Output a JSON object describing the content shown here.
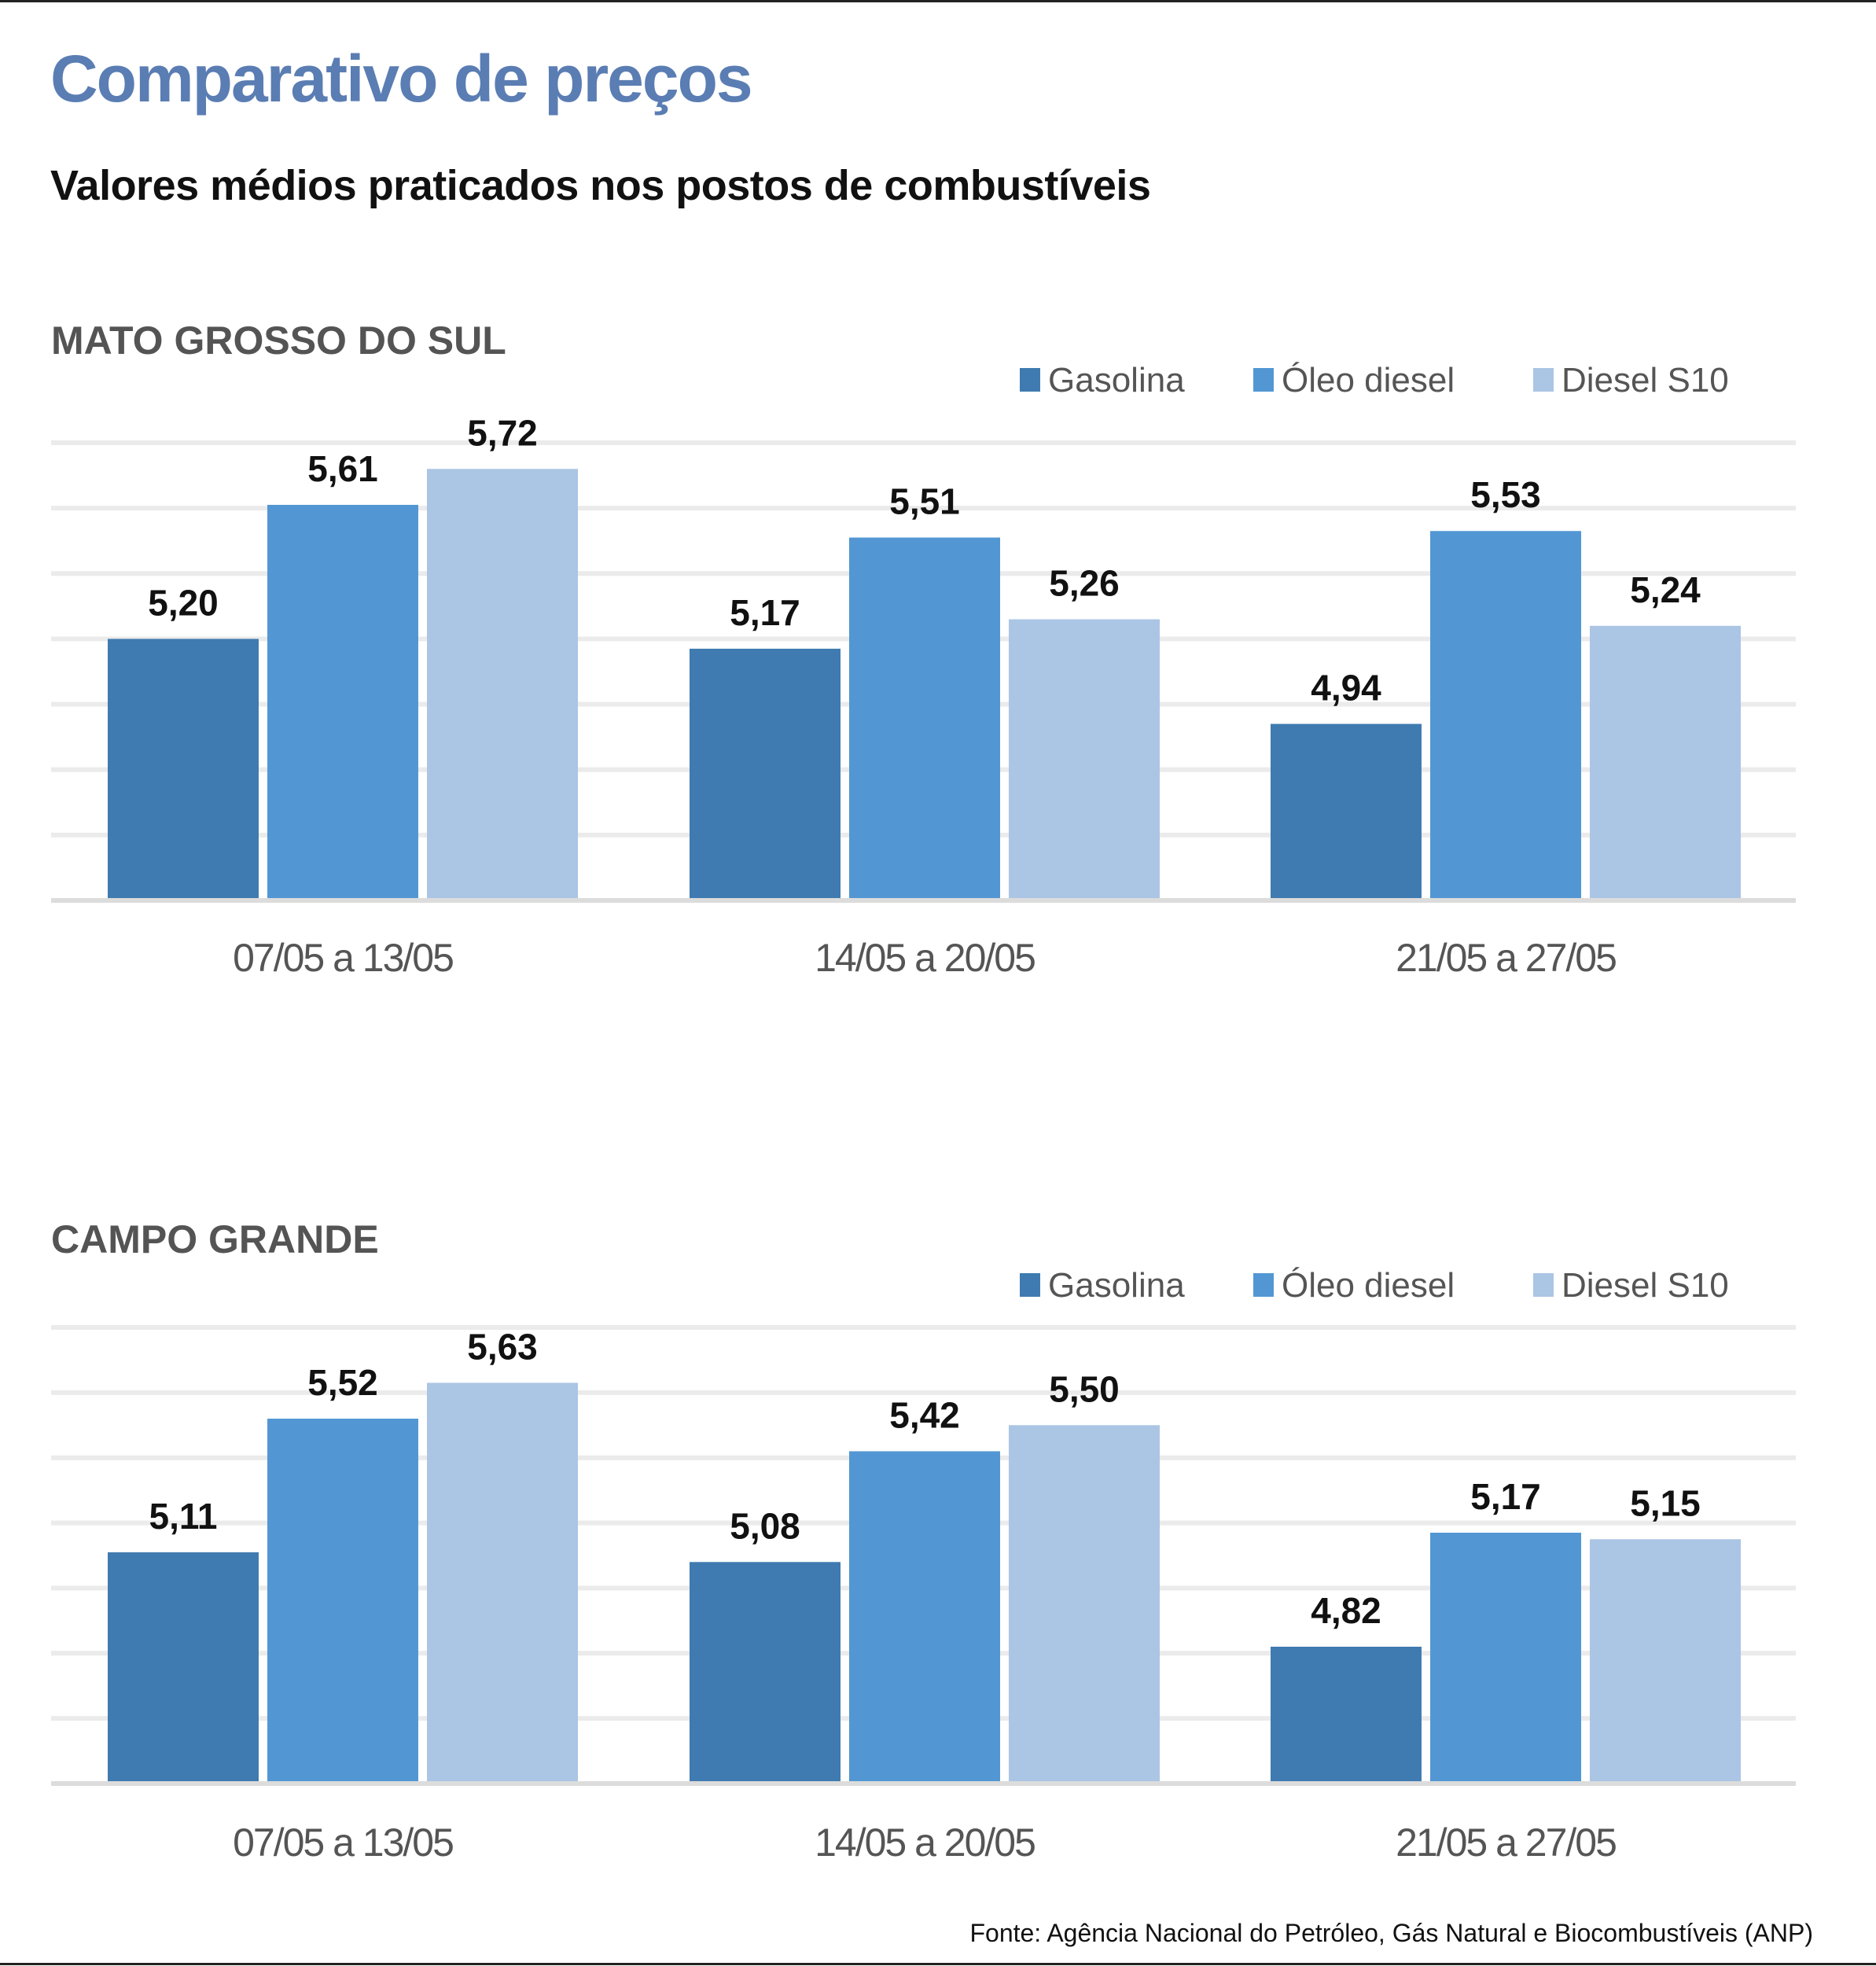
{
  "title": "Comparativo de preços",
  "subtitle": "Valores médios praticados nos postos de combustíveis",
  "source": "Fonte: Agência Nacional do Petróleo, Gás Natural e Biocombustíveis (ANP)",
  "colors": {
    "Gasolina": "#3f7bb0",
    "Óleo diesel": "#5297d3",
    "Diesel S10": "#abc5e4",
    "grid": "#ebebeb"
  },
  "chart_data": [
    {
      "type": "bar",
      "title": "MATO GROSSO DO SUL",
      "categories": [
        "07/05 a 13/05",
        "14/05 a 20/05",
        "21/05 a 27/05"
      ],
      "series": [
        {
          "name": "Gasolina",
          "values": [
            5.2,
            5.17,
            4.94
          ],
          "labels": [
            "5,20",
            "5,17",
            "4,94"
          ]
        },
        {
          "name": "Óleo diesel",
          "values": [
            5.61,
            5.51,
            5.53
          ],
          "labels": [
            "5,61",
            "5,51",
            "5,53"
          ]
        },
        {
          "name": "Diesel S10",
          "values": [
            5.72,
            5.26,
            5.24
          ],
          "labels": [
            "5,72",
            "5,26",
            "5,24"
          ]
        }
      ],
      "ylim": [
        4.4,
        5.8
      ],
      "grid_step": 0.2,
      "grid": true,
      "legend": "top-right",
      "xlabel": "",
      "ylabel": ""
    },
    {
      "type": "bar",
      "title": "CAMPO GRANDE",
      "categories": [
        "07/05 a 13/05",
        "14/05 a 20/05",
        "21/05 a 27/05"
      ],
      "series": [
        {
          "name": "Gasolina",
          "values": [
            5.11,
            5.08,
            4.82
          ],
          "labels": [
            "5,11",
            "5,08",
            "4,82"
          ]
        },
        {
          "name": "Óleo diesel",
          "values": [
            5.52,
            5.42,
            5.17
          ],
          "labels": [
            "5,52",
            "5,42",
            "5,17"
          ]
        },
        {
          "name": "Diesel S10",
          "values": [
            5.63,
            5.5,
            5.15
          ],
          "labels": [
            "5,63",
            "5,50",
            "5,15"
          ]
        }
      ],
      "ylim": [
        4.4,
        5.8
      ],
      "grid_step": 0.2,
      "grid": true,
      "legend": "top-right",
      "xlabel": "",
      "ylabel": ""
    }
  ]
}
